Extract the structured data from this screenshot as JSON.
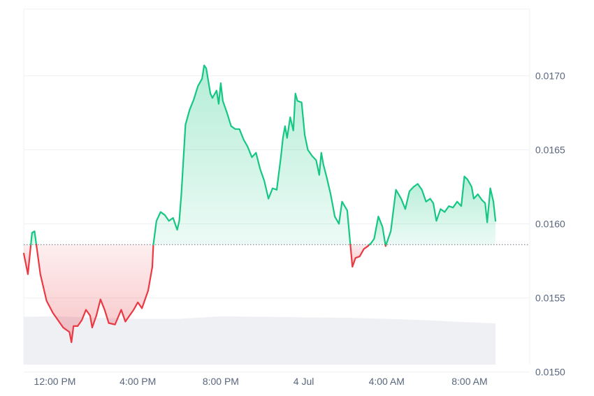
{
  "chart_data": {
    "type": "area",
    "baseline": 0.01586,
    "y_range": [
      0.01505,
      0.01745
    ],
    "yticks": [
      "0.0170",
      "0.0165",
      "0.0160",
      "0.0155",
      "0.0150"
    ],
    "ytick_values": [
      0.017,
      0.0165,
      0.016,
      0.0155,
      0.015
    ],
    "xticks": [
      "12:00 PM",
      "4:00 PM",
      "8:00 PM",
      "4 Jul",
      "4:00 AM",
      "8:00 AM"
    ],
    "xtick_hours": [
      12,
      16,
      20,
      24,
      28,
      32
    ],
    "x_range_hours": [
      10.5,
      34.9
    ],
    "colors": {
      "up_line": "#16c784",
      "down_line": "#ea3943",
      "up_fill": "#16c784",
      "down_fill": "#ea3943",
      "grid": "#eef0f3",
      "baseline": "#6b7280",
      "volume": "#eef0f4"
    },
    "price_series": [
      [
        10.5,
        0.0158
      ],
      [
        10.7,
        0.01566
      ],
      [
        10.9,
        0.01594
      ],
      [
        11.02,
        0.01595
      ],
      [
        11.3,
        0.01566
      ],
      [
        11.6,
        0.01548
      ],
      [
        11.9,
        0.0154
      ],
      [
        12.2,
        0.01534
      ],
      [
        12.4,
        0.0153
      ],
      [
        12.6,
        0.01528
      ],
      [
        12.7,
        0.01527
      ],
      [
        12.8,
        0.0152
      ],
      [
        12.9,
        0.01531
      ],
      [
        13.1,
        0.01531
      ],
      [
        13.3,
        0.01535
      ],
      [
        13.5,
        0.01542
      ],
      [
        13.7,
        0.01538
      ],
      [
        13.8,
        0.0153
      ],
      [
        14.0,
        0.01538
      ],
      [
        14.2,
        0.01549
      ],
      [
        14.4,
        0.01542
      ],
      [
        14.6,
        0.01533
      ],
      [
        14.9,
        0.01532
      ],
      [
        15.2,
        0.01542
      ],
      [
        15.4,
        0.01534
      ],
      [
        15.6,
        0.01538
      ],
      [
        15.8,
        0.01542
      ],
      [
        16.0,
        0.01547
      ],
      [
        16.2,
        0.01543
      ],
      [
        16.5,
        0.01555
      ],
      [
        16.7,
        0.01571
      ],
      [
        16.75,
        0.01586
      ],
      [
        16.9,
        0.01602
      ],
      [
        17.1,
        0.01608
      ],
      [
        17.3,
        0.01606
      ],
      [
        17.5,
        0.01602
      ],
      [
        17.7,
        0.01604
      ],
      [
        17.8,
        0.016
      ],
      [
        17.9,
        0.01596
      ],
      [
        18.0,
        0.01602
      ],
      [
        18.1,
        0.0162
      ],
      [
        18.3,
        0.01667
      ],
      [
        18.5,
        0.01677
      ],
      [
        18.7,
        0.01684
      ],
      [
        18.9,
        0.01693
      ],
      [
        19.1,
        0.01698
      ],
      [
        19.2,
        0.01707
      ],
      [
        19.3,
        0.01705
      ],
      [
        19.5,
        0.01688
      ],
      [
        19.6,
        0.01685
      ],
      [
        19.8,
        0.0169
      ],
      [
        19.9,
        0.01681
      ],
      [
        20.0,
        0.01695
      ],
      [
        20.1,
        0.01683
      ],
      [
        20.3,
        0.01675
      ],
      [
        20.5,
        0.01666
      ],
      [
        20.7,
        0.01664
      ],
      [
        20.9,
        0.01664
      ],
      [
        21.1,
        0.01657
      ],
      [
        21.3,
        0.01652
      ],
      [
        21.5,
        0.01645
      ],
      [
        21.7,
        0.01648
      ],
      [
        21.9,
        0.01637
      ],
      [
        22.1,
        0.01629
      ],
      [
        22.3,
        0.01617
      ],
      [
        22.5,
        0.01624
      ],
      [
        22.7,
        0.01623
      ],
      [
        22.9,
        0.01645
      ],
      [
        23.0,
        0.01658
      ],
      [
        23.1,
        0.01666
      ],
      [
        23.2,
        0.01658
      ],
      [
        23.35,
        0.01672
      ],
      [
        23.5,
        0.01663
      ],
      [
        23.6,
        0.01688
      ],
      [
        23.7,
        0.01683
      ],
      [
        23.9,
        0.01682
      ],
      [
        24.05,
        0.0166
      ],
      [
        24.2,
        0.0165
      ],
      [
        24.4,
        0.01646
      ],
      [
        24.6,
        0.01643
      ],
      [
        24.75,
        0.01633
      ],
      [
        24.85,
        0.01648
      ],
      [
        24.95,
        0.0164
      ],
      [
        25.1,
        0.01632
      ],
      [
        25.3,
        0.0162
      ],
      [
        25.5,
        0.01605
      ],
      [
        25.7,
        0.016
      ],
      [
        25.85,
        0.01615
      ],
      [
        26.1,
        0.01609
      ],
      [
        26.25,
        0.01586
      ],
      [
        26.35,
        0.01571
      ],
      [
        26.5,
        0.01577
      ],
      [
        26.7,
        0.01578
      ],
      [
        26.9,
        0.01583
      ],
      [
        27.1,
        0.01585
      ],
      [
        27.25,
        0.01587
      ],
      [
        27.4,
        0.0159
      ],
      [
        27.6,
        0.01605
      ],
      [
        27.8,
        0.01598
      ],
      [
        27.95,
        0.01585
      ],
      [
        28.2,
        0.01595
      ],
      [
        28.45,
        0.01623
      ],
      [
        28.7,
        0.01617
      ],
      [
        28.9,
        0.0161
      ],
      [
        29.1,
        0.01622
      ],
      [
        29.3,
        0.01625
      ],
      [
        29.5,
        0.01627
      ],
      [
        29.7,
        0.01623
      ],
      [
        29.9,
        0.01615
      ],
      [
        30.1,
        0.01617
      ],
      [
        30.25,
        0.01614
      ],
      [
        30.4,
        0.01602
      ],
      [
        30.6,
        0.0161
      ],
      [
        30.8,
        0.01608
      ],
      [
        31.0,
        0.01612
      ],
      [
        31.2,
        0.01611
      ],
      [
        31.4,
        0.01615
      ],
      [
        31.6,
        0.01612
      ],
      [
        31.75,
        0.01632
      ],
      [
        31.9,
        0.0163
      ],
      [
        32.1,
        0.01625
      ],
      [
        32.2,
        0.01617
      ],
      [
        32.4,
        0.0162
      ],
      [
        32.6,
        0.01616
      ],
      [
        32.75,
        0.01614
      ],
      [
        32.85,
        0.01601
      ],
      [
        33.0,
        0.01624
      ],
      [
        33.15,
        0.01615
      ],
      [
        33.25,
        0.01602
      ]
    ],
    "volume_series": [
      [
        10.5,
        0.95
      ],
      [
        12.0,
        0.96
      ],
      [
        14.0,
        0.93
      ],
      [
        16.0,
        0.91
      ],
      [
        18.0,
        0.91
      ],
      [
        20.0,
        0.96
      ],
      [
        22.0,
        0.95
      ],
      [
        24.0,
        0.94
      ],
      [
        26.0,
        0.93
      ],
      [
        28.0,
        0.91
      ],
      [
        30.0,
        0.88
      ],
      [
        32.0,
        0.84
      ],
      [
        33.25,
        0.82
      ]
    ]
  }
}
